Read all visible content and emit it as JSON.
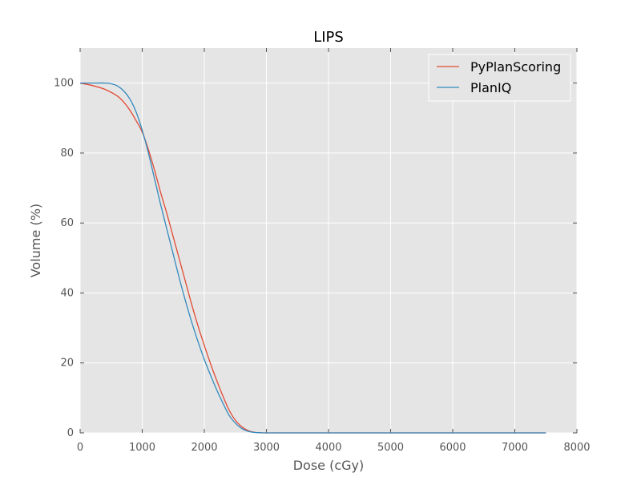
{
  "chart_data": {
    "type": "line",
    "title": "LIPS",
    "xlabel": "Dose (cGy)",
    "ylabel": "Volume (%)",
    "xlim": [
      0,
      8000
    ],
    "ylim": [
      0,
      110
    ],
    "xticks": [
      0,
      1000,
      2000,
      3000,
      4000,
      5000,
      6000,
      7000,
      8000
    ],
    "yticks": [
      0,
      20,
      40,
      60,
      80,
      100
    ],
    "grid": true,
    "legend_position": "top-right",
    "colors": {
      "background": "#e5e5e5",
      "grid": "#ffffff"
    },
    "series": [
      {
        "name": "PyPlanScoring",
        "color": "#e24a33",
        "x": [
          0,
          200,
          400,
          600,
          700,
          800,
          900,
          1000,
          1100,
          1200,
          1300,
          1400,
          1500,
          1600,
          1700,
          1800,
          1900,
          2000,
          2100,
          2200,
          2300,
          2400,
          2500,
          2600,
          2700,
          2800,
          2900,
          3000,
          3500,
          4000,
          5000,
          6000,
          7000,
          7500
        ],
        "y": [
          100,
          99.3,
          98.2,
          96.3,
          94.6,
          92.3,
          89.3,
          86,
          81,
          75,
          68.5,
          62.5,
          56,
          49.5,
          43,
          36.5,
          30.5,
          25,
          19.8,
          15,
          10.5,
          6.5,
          3.6,
          1.8,
          0.7,
          0.2,
          0.05,
          0,
          0,
          0,
          0,
          0,
          0,
          0
        ]
      },
      {
        "name": "PlanIQ",
        "color": "#348abd",
        "x": [
          0,
          200,
          400,
          500,
          600,
          700,
          800,
          900,
          1000,
          1100,
          1200,
          1300,
          1400,
          1500,
          1600,
          1700,
          1800,
          1900,
          2000,
          2100,
          2200,
          2300,
          2400,
          2500,
          2600,
          2700,
          2800,
          2900,
          3000,
          3500,
          4000,
          5000,
          6000,
          7000,
          7500
        ],
        "y": [
          100,
          100,
          100,
          99.8,
          99.2,
          97.8,
          95.5,
          91.8,
          86.5,
          80,
          72.5,
          65,
          58,
          51,
          44,
          37.5,
          31.5,
          26,
          21,
          16.5,
          12.3,
          8.5,
          5,
          2.8,
          1.3,
          0.5,
          0.15,
          0.05,
          0,
          0,
          0,
          0,
          0,
          0,
          0
        ]
      }
    ]
  }
}
